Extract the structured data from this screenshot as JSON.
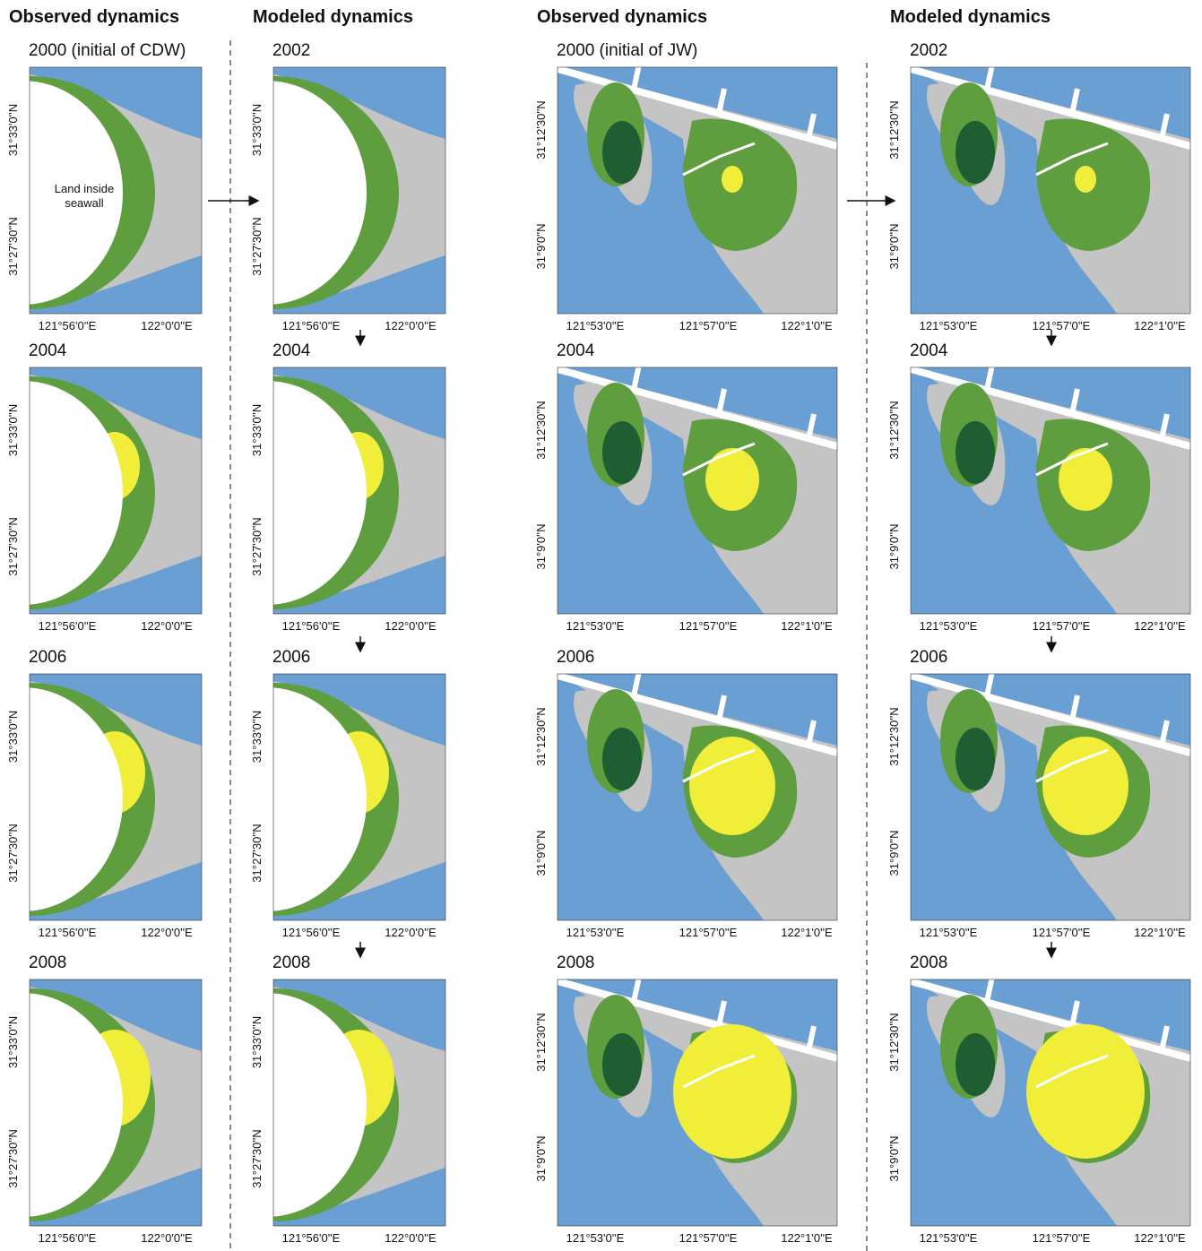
{
  "sites": [
    {
      "lat_labels": [
        "31°33'0''N",
        "31°27'30''N"
      ],
      "lon_labels": [
        "121°56'0''E",
        "122°0'0''E"
      ],
      "annotation": "Land inside seawall",
      "columns": [
        {
          "header": "Observed dynamics",
          "years": [
            "2000 (initial of CDW)",
            "2004",
            "2006",
            "2008"
          ]
        },
        {
          "header": "Modeled dynamics",
          "years": [
            "2002",
            "2004",
            "2006",
            "2008"
          ]
        }
      ]
    },
    {
      "lat_labels": [
        "31°12'30''N",
        "31°9'0''N"
      ],
      "lon_labels": [
        "121°53'0''E",
        "121°57'0''E",
        "122°1'0''E"
      ],
      "columns": [
        {
          "header": "Observed dynamics",
          "years": [
            "2000 (initial of JW)",
            "2004",
            "2006",
            "2008"
          ]
        },
        {
          "header": "Modeled dynamics",
          "years": [
            "2002",
            "2004",
            "2006",
            "2008"
          ]
        }
      ]
    }
  ]
}
